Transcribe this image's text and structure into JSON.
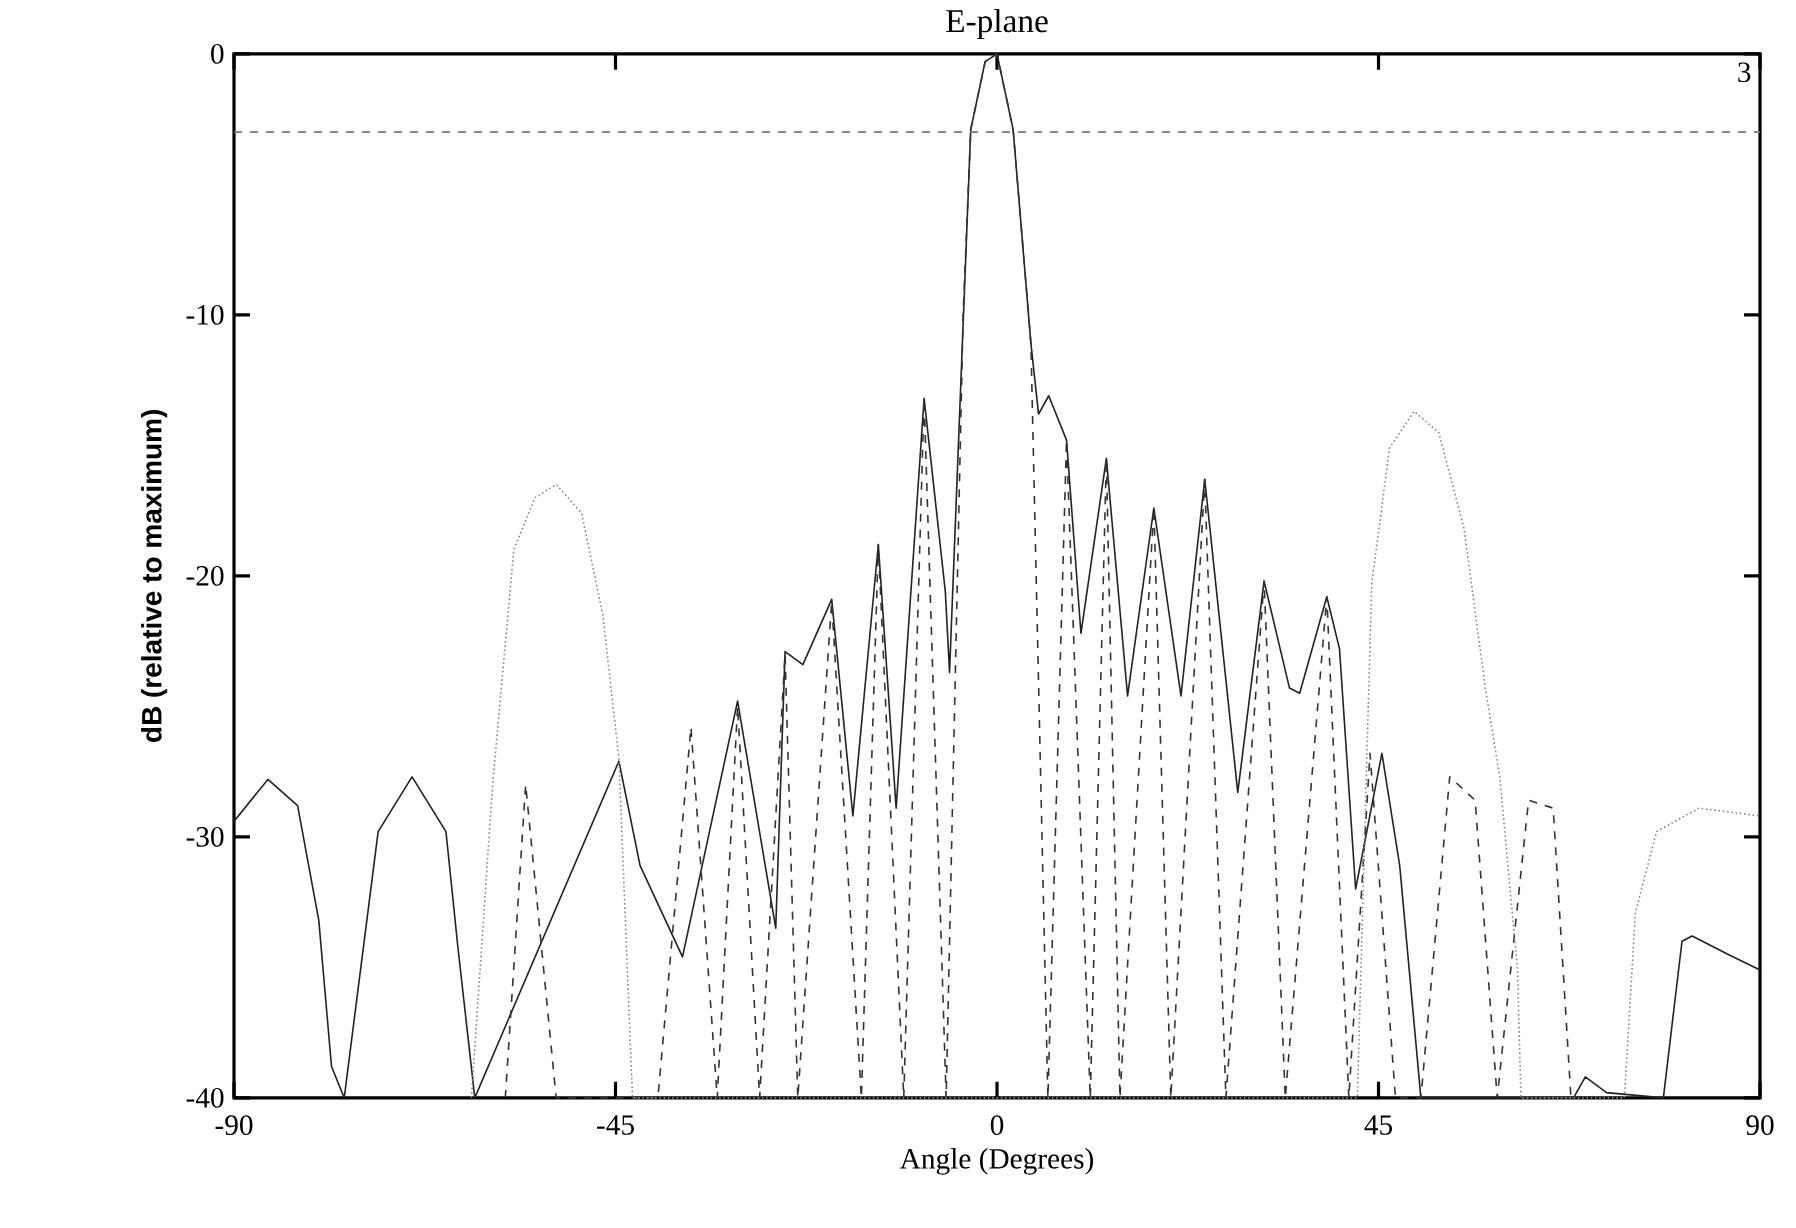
{
  "chart_data": {
    "type": "line",
    "title": "E-plane",
    "xlabel": "Angle (Degrees)",
    "ylabel": "dB (relative to maximum)",
    "xlim": [
      -90,
      90
    ],
    "ylim": [
      -40,
      0
    ],
    "xticks": [
      -90,
      -45,
      0,
      45,
      90
    ],
    "yticks": [
      -40,
      -30,
      -20,
      -10,
      0
    ],
    "marker": "none",
    "ref_lines": [
      {
        "axis": "y",
        "value": -3,
        "color": "#777777",
        "line_style": "dashed"
      }
    ],
    "annotations": [
      "3"
    ],
    "series": [
      {
        "color": "#222222",
        "line_style": "solid",
        "x": [
          -90,
          -86,
          -82.5,
          -80,
          -78.5,
          -77,
          -73,
          -69,
          -65,
          -63.6,
          -61.6,
          -44.6,
          -42.1,
          -37.1,
          -30.6,
          -26.1,
          -25,
          -22.9,
          -19.5,
          -17,
          -14,
          -11.9,
          -8.6,
          -6.1,
          -5.6,
          -3.1,
          -1.4,
          0,
          1.9,
          4,
          4.9,
          6.1,
          8.2,
          9.9,
          12.9,
          15.4,
          18.5,
          21.7,
          24.5,
          28.4,
          31.5,
          34.5,
          35.7,
          38.9,
          40.4,
          42.3,
          45.4,
          47.5,
          50,
          68,
          69.4,
          71.9,
          78.6,
          80.8,
          82,
          86.2,
          90
        ],
        "values": [
          -29.4,
          -27.8,
          -28.8,
          -33.2,
          -38.8,
          -40,
          -29.8,
          -27.7,
          -29.8,
          -34.2,
          -40,
          -27.1,
          -31.1,
          -34.6,
          -24.8,
          -33.5,
          -22.9,
          -23.4,
          -20.9,
          -29.2,
          -18.8,
          -28.9,
          -13.2,
          -20.6,
          -23.7,
          -2.9,
          -0.3,
          0,
          -2.9,
          -11.1,
          -13.8,
          -13.1,
          -14.8,
          -22.2,
          -15.5,
          -24.6,
          -17.4,
          -24.6,
          -16.3,
          -28.3,
          -20.2,
          -24.3,
          -24.5,
          -20.8,
          -22.8,
          -32,
          -26.8,
          -31.1,
          -40,
          -40,
          -39.2,
          -39.8,
          -40,
          -34,
          -33.8,
          -34.5,
          -35.1
        ]
      },
      {
        "color": "#333333",
        "line_style": "dashed",
        "x": [
          -58,
          -55.6,
          -52,
          -40,
          -36.1,
          -33,
          -30.6,
          -28,
          -25,
          -23.5,
          -19.5,
          -16,
          -14,
          -11,
          -8.6,
          -6,
          -4,
          -3.1,
          -1.4,
          0,
          1.9,
          4,
          6,
          8.2,
          11,
          12.9,
          14.5,
          18.5,
          20.5,
          24.5,
          27,
          31.5,
          34,
          38.9,
          41.5,
          44,
          47,
          50,
          53.4,
          56.4,
          59,
          62.7,
          65.6,
          67.7
        ],
        "values": [
          -40,
          -28,
          -40,
          -40,
          -25.8,
          -40,
          -25,
          -40,
          -23,
          -40,
          -21,
          -40,
          -18.8,
          -40,
          -13.2,
          -40,
          -10,
          -2.9,
          -0.3,
          0,
          -2.9,
          -11.1,
          -40,
          -14.8,
          -40,
          -15.5,
          -40,
          -17.4,
          -40,
          -16.3,
          -40,
          -20.2,
          -40,
          -20.8,
          -40,
          -26.8,
          -40,
          -40,
          -27.7,
          -28.6,
          -40,
          -28.6,
          -28.9,
          -40
        ]
      },
      {
        "color": "#888888",
        "line_style": "dotted",
        "x": [
          -62,
          -59.5,
          -57,
          -54.5,
          -52,
          -49,
          -46.5,
          -44.6,
          -43,
          42.5,
          44.2,
          46.3,
          49.2,
          52.1,
          55.1,
          57.6,
          59.3,
          61.4,
          61.8,
          74,
          75.3,
          77.8,
          82.8,
          90
        ],
        "values": [
          -40,
          -28,
          -19,
          -17,
          -16.5,
          -17.6,
          -21.5,
          -27,
          -40,
          -40,
          -20.3,
          -15.1,
          -13.7,
          -14.5,
          -18.2,
          -24.3,
          -27.7,
          -35.1,
          -40,
          -40,
          -32.9,
          -29.8,
          -28.9,
          -29.2
        ]
      }
    ]
  }
}
